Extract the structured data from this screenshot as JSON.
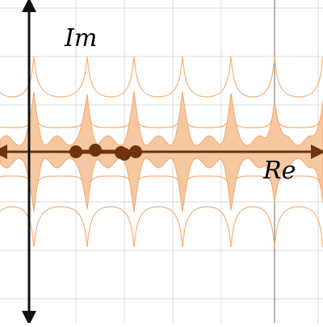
{
  "plot": {
    "labels": {
      "imaginary_axis": "Im",
      "real_axis": "Re"
    },
    "colors": {
      "background": "#ffffff",
      "grid": "#d8d8d8",
      "vertical_axis": "#111111",
      "horizontal_axis": "#6b3410",
      "region_fill": "#f6c8a2",
      "region_stroke": "#f2a86c",
      "curve": "#f5b07a",
      "points": "#6e3410"
    },
    "points_count": 5
  }
}
